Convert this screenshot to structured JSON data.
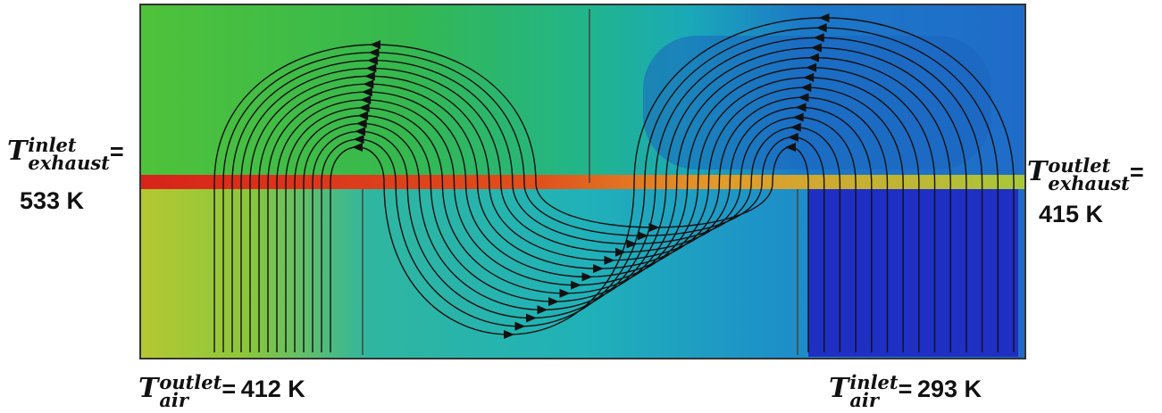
{
  "labels": {
    "exhaust_inlet": {
      "symbol": "T",
      "superscript": "inlet",
      "subscript": "exhaust",
      "equals": "=",
      "value": "533 K"
    },
    "exhaust_outlet": {
      "symbol": "T",
      "superscript": "outlet",
      "subscript": "exhaust",
      "equals": "=",
      "value": "415 K"
    },
    "air_outlet": {
      "symbol": "T",
      "superscript": "outlet",
      "subscript": "air",
      "equals": "=",
      "value": "412 K"
    },
    "air_inlet": {
      "symbol": "T",
      "superscript": "inlet",
      "subscript": "air",
      "equals": "=",
      "value": "293 K"
    }
  }
}
